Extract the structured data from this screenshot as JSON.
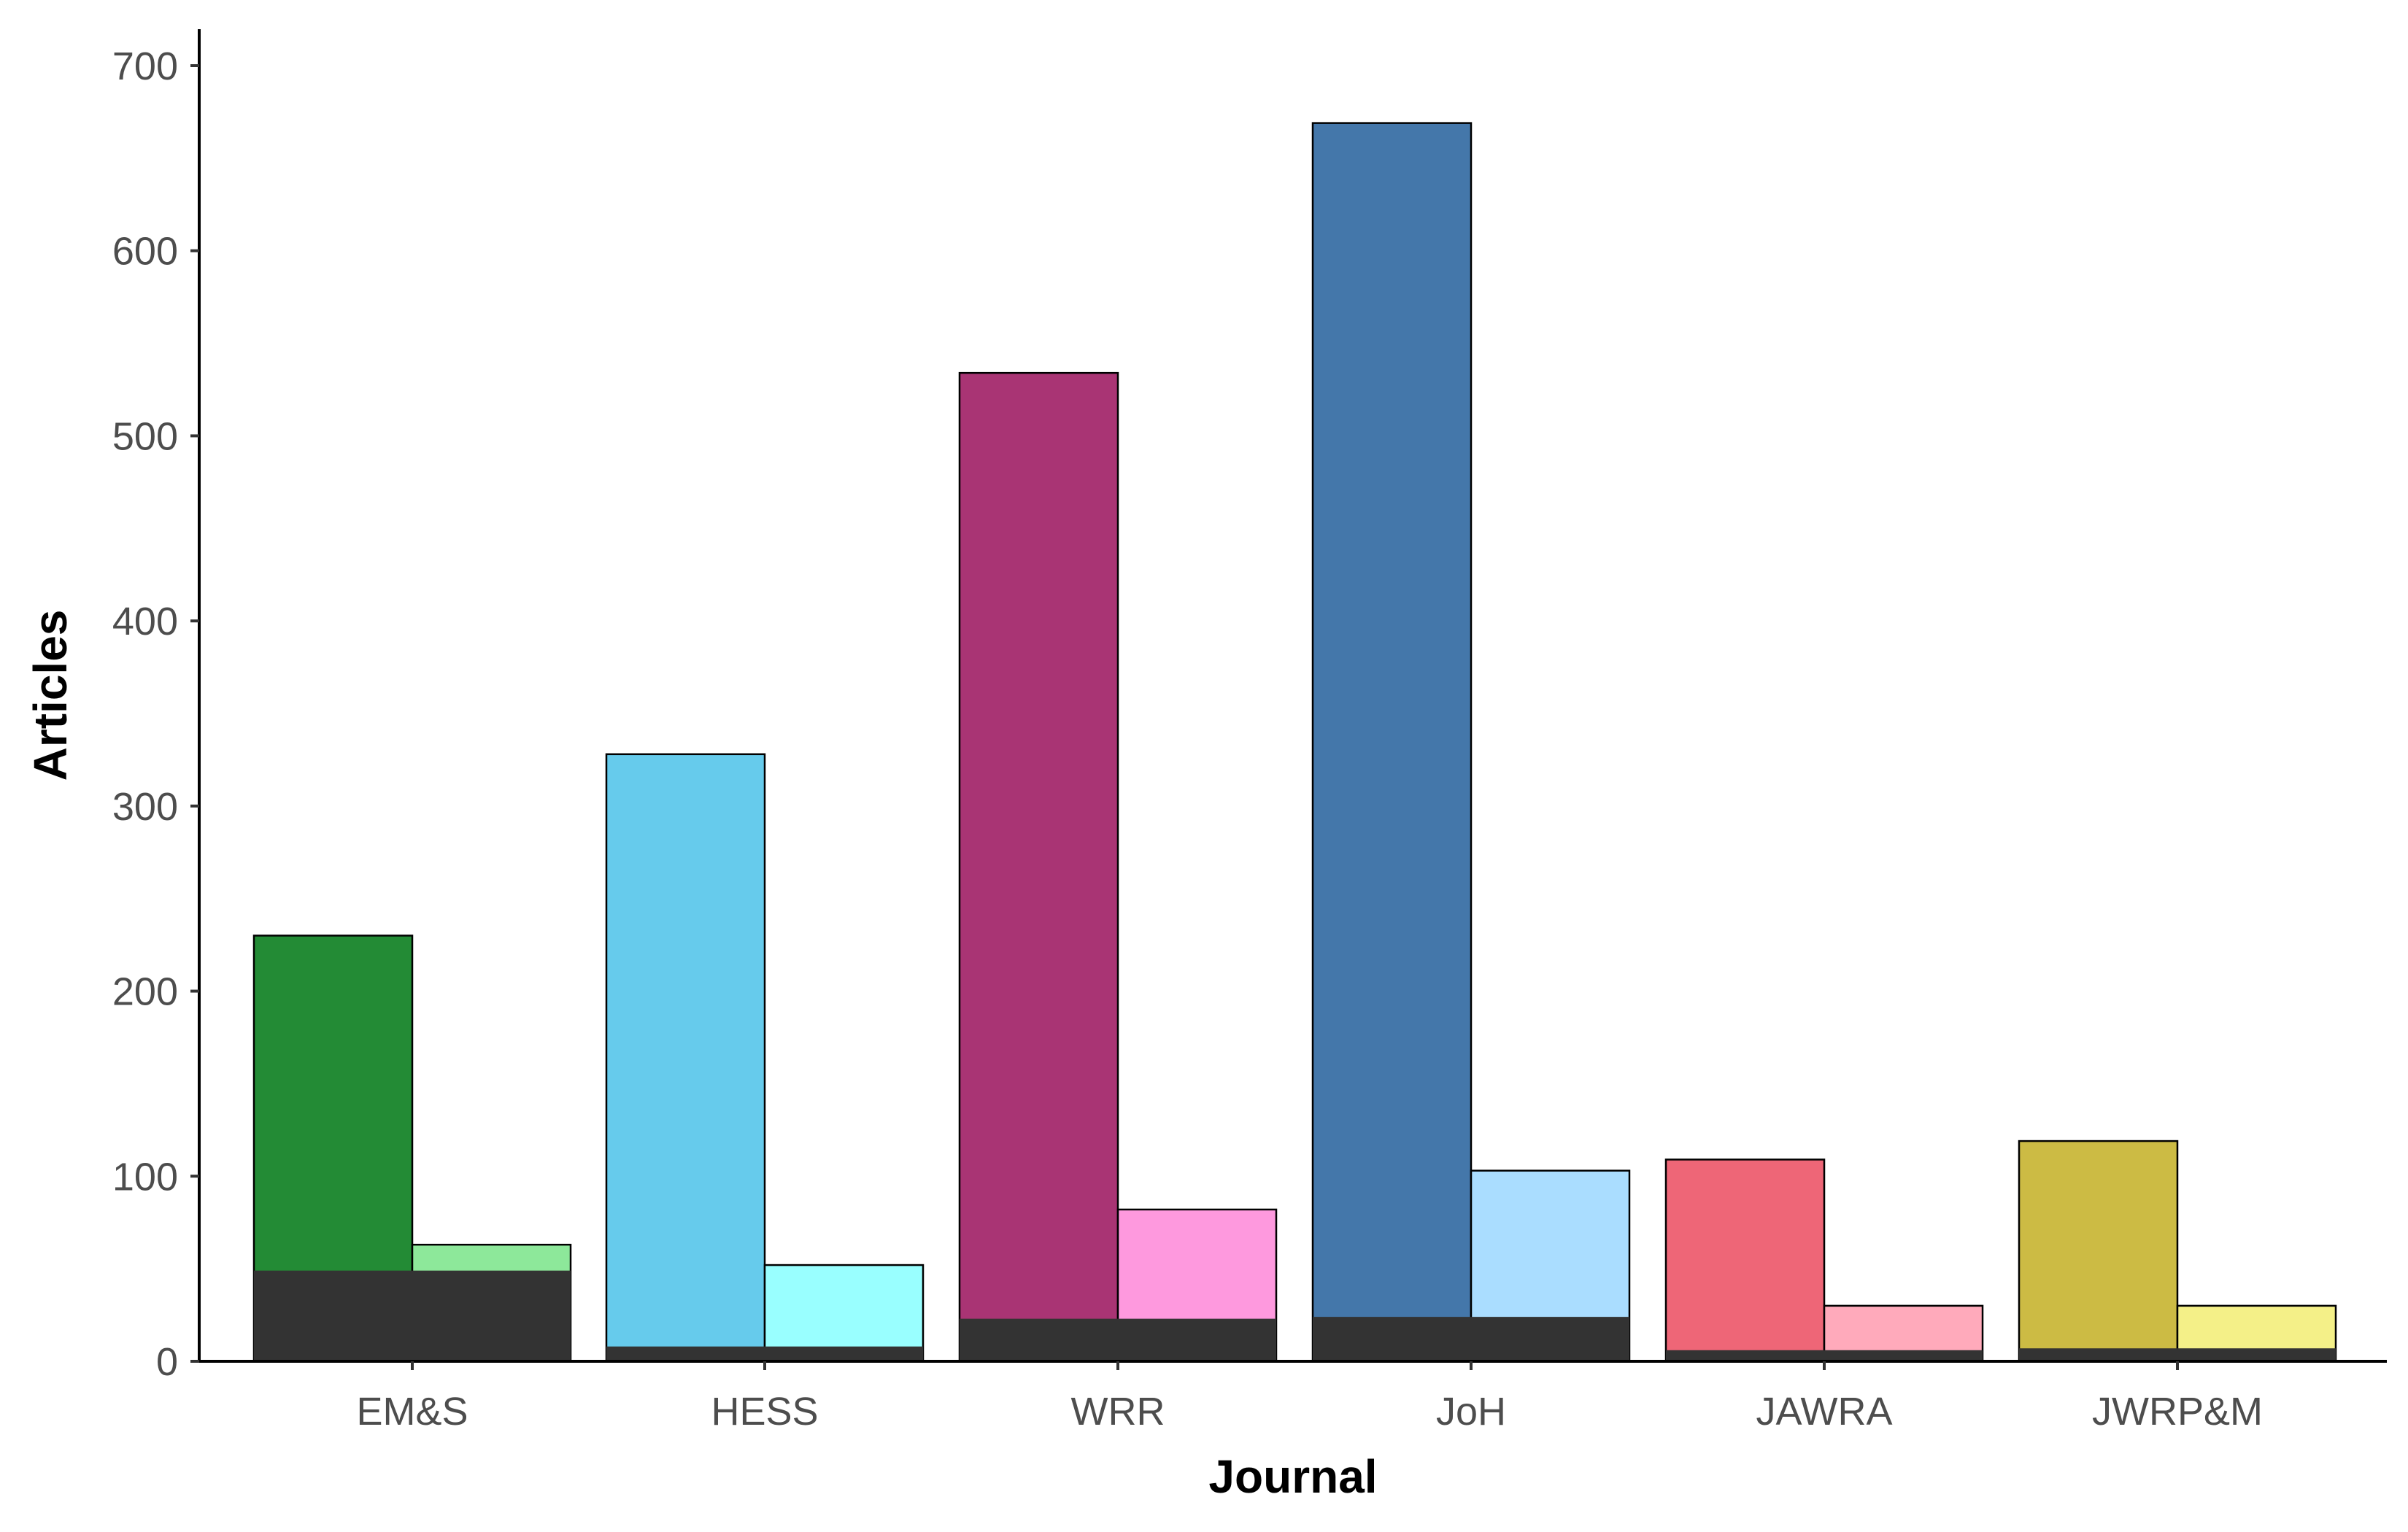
{
  "chart_data": {
    "type": "bar",
    "xlabel": "Journal",
    "ylabel": "Articles",
    "ylim": [
      0,
      700
    ],
    "yticks": [
      0,
      100,
      200,
      300,
      400,
      500,
      600,
      700
    ],
    "grid": false,
    "legend": "none",
    "categories": [
      "EM&S",
      "HESS",
      "WRR",
      "JoH",
      "JAWRA",
      "JWRP&M"
    ],
    "series": [
      {
        "values": [
          230,
          328,
          534,
          669,
          109,
          119
        ],
        "colors": [
          "#238b35",
          "#66cbec",
          "#a93474",
          "#4477aa",
          "#ee6677",
          "#ccbb44"
        ]
      },
      {
        "values": [
          63,
          52,
          82,
          103,
          30,
          30
        ],
        "colors": [
          "#8de89a",
          "#99ffff",
          "#fe99de",
          "#aaddff",
          "#ffaabb",
          "#f4f088"
        ]
      }
    ],
    "overlay": {
      "color": "#333333",
      "values": [
        49,
        8,
        23,
        24,
        6,
        7
      ]
    }
  }
}
